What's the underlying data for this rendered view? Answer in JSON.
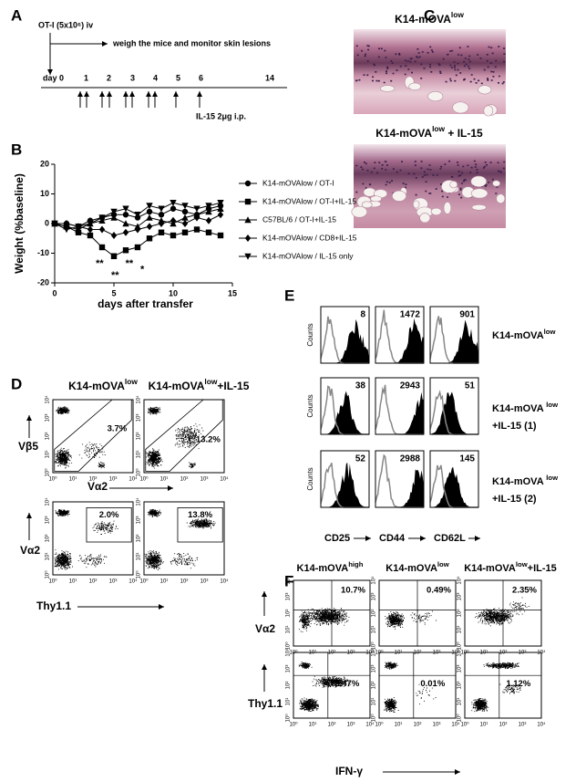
{
  "panels": {
    "A": {
      "label": "A",
      "injection": "OT-I (5x10⁶) iv",
      "monitor": "weigh the mice and monitor skin lesions",
      "days": [
        "day 0",
        "1",
        "2",
        "3",
        "4",
        "5",
        "6",
        "14"
      ],
      "treatment": "IL-15 2μg i.p."
    },
    "B": {
      "label": "B"
    },
    "C": {
      "label": "C",
      "titles": [
        [
          {
            "t": "K14-mOVA"
          },
          {
            "sup": "low"
          }
        ],
        [
          {
            "t": "K14-mOVA"
          },
          {
            "sup": "low"
          },
          {
            "t": " + IL-15"
          }
        ]
      ]
    },
    "D": {
      "label": "D",
      "columns": [
        [
          {
            "t": "K14-mOVA"
          },
          {
            "sup": "low"
          }
        ],
        [
          {
            "t": "K14-mOVA"
          },
          {
            "sup": "low"
          },
          {
            "t": "+IL-15"
          }
        ]
      ],
      "y_labels": [
        "Vβ5",
        "Vα2"
      ],
      "x_labels": [
        "Vα2",
        "Thy1.1"
      ],
      "percents": [
        [
          "3.7%",
          "13.2%"
        ],
        [
          "2.0%",
          "13.8%"
        ]
      ]
    },
    "E": {
      "label": "E",
      "y_label": "Counts",
      "markers": [
        "CD25",
        "CD44",
        "CD62L"
      ],
      "rows": [
        [
          {
            "t": "K14-mOVA"
          },
          {
            "sup": "low"
          }
        ],
        [
          {
            "t": "K14-mOVA "
          },
          {
            "sup": "low"
          },
          {
            "t": "+IL-15 (1)"
          }
        ],
        [
          {
            "t": "K14-mOVA "
          },
          {
            "sup": "low"
          },
          {
            "t": "+IL-15 (2)"
          }
        ]
      ],
      "values": [
        [
          8,
          1472,
          901
        ],
        [
          38,
          2943,
          51
        ],
        [
          52,
          2988,
          145
        ]
      ]
    },
    "F": {
      "label": "F",
      "columns": [
        [
          {
            "t": "K14-mOVA"
          },
          {
            "sup": "high"
          }
        ],
        [
          {
            "t": "K14-mOVA"
          },
          {
            "sup": "low"
          }
        ],
        [
          {
            "t": "K14-mOVA"
          },
          {
            "sup": "low"
          },
          {
            "t": "+IL-15"
          }
        ]
      ],
      "y_labels": [
        "Vα2",
        "Thy1.1"
      ],
      "x_label": "IFN-γ",
      "percents": [
        [
          "10.7%",
          "0.49%",
          "2.35%"
        ],
        [
          "2.47%",
          "0.01%",
          "1.12%"
        ]
      ]
    },
    "log_ticks": [
      "10⁰",
      "10¹",
      "10²",
      "10³",
      "10⁴"
    ]
  },
  "chart_data": {
    "type": "line",
    "x_label": "days after transfer",
    "y_label": "Weight (%baseline)",
    "x": [
      0,
      1,
      2,
      3,
      4,
      5,
      6,
      7,
      8,
      9,
      10,
      11,
      12,
      13,
      14
    ],
    "xlim": [
      0,
      15
    ],
    "xticks": [
      0,
      5,
      10,
      15
    ],
    "ylim": [
      -20,
      20
    ],
    "yticks": [
      -20,
      -10,
      0,
      10,
      20
    ],
    "annotations": [
      "**",
      "**",
      "**",
      "*"
    ],
    "series": [
      {
        "name": "K14-mOVAlow / OT-I",
        "marker": "circle",
        "color": "#000000",
        "values": [
          0,
          0,
          -1,
          1,
          2,
          3,
          3,
          2,
          4,
          3,
          5,
          4,
          3,
          5,
          6
        ]
      },
      {
        "name": "K14-mOVAlow / OT-I+IL-15",
        "marker": "square",
        "color": "#000000",
        "values": [
          0,
          -1,
          -3,
          -4,
          -8,
          -11,
          -9,
          -8,
          -5,
          -3,
          -4,
          -3,
          -2,
          -3,
          -4
        ]
      },
      {
        "name": "C57BL/6 / OT-I+IL-15",
        "marker": "triangle",
        "color": "#000000",
        "values": [
          0,
          -1,
          -2,
          0,
          1,
          2,
          0,
          -1,
          2,
          1,
          0,
          2,
          3,
          4,
          5
        ]
      },
      {
        "name": "K14-mOVAlow / CD8+IL-15",
        "marker": "diamond",
        "color": "#000000",
        "values": [
          0,
          0,
          -1,
          -2,
          -2,
          -4,
          -3,
          -2,
          -1,
          0,
          1,
          0,
          2,
          1,
          3
        ]
      },
      {
        "name": "K14-mOVAlow / IL-15 only",
        "marker": "triangle-down",
        "color": "#000000",
        "values": [
          0,
          -2,
          -1,
          0,
          2,
          4,
          5,
          3,
          6,
          5,
          7,
          6,
          5,
          6,
          7
        ]
      }
    ]
  }
}
